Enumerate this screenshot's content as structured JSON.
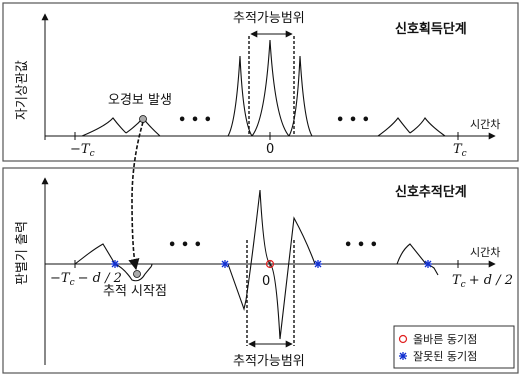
{
  "top_panel": {
    "title": "신호획득단계",
    "y_axis_label": "자기상관값",
    "x_axis_label": "시간차",
    "tracking_range_label": "추적가능범위",
    "false_alarm_label": "오경보 발생",
    "ellipsis_left": "• • •",
    "ellipsis_right": "• • •",
    "tick_left": "−T",
    "tick_left_sub": "c",
    "tick_zero": "0",
    "tick_right": "T",
    "tick_right_sub": "c"
  },
  "bottom_panel": {
    "title": "신호추적단계",
    "y_axis_label": "판별기 출력",
    "x_axis_label": "시간차",
    "tracking_start_label": "추적 시작점",
    "tracking_range_label": "추적가능범위",
    "ellipsis_left": "• • •",
    "ellipsis_right": "• • •",
    "tick_left": "−T",
    "tick_left_sub": "c",
    "tick_left_rest": "− d / 2",
    "tick_zero": "0",
    "tick_right": "T",
    "tick_right_sub": "c",
    "tick_right_rest": "+ d / 2"
  },
  "legend": {
    "correct_sync": "올바른 동기점",
    "wrong_sync": "잘못된 동기점",
    "correct_color": "#e02020",
    "wrong_color": "#1030d0"
  }
}
